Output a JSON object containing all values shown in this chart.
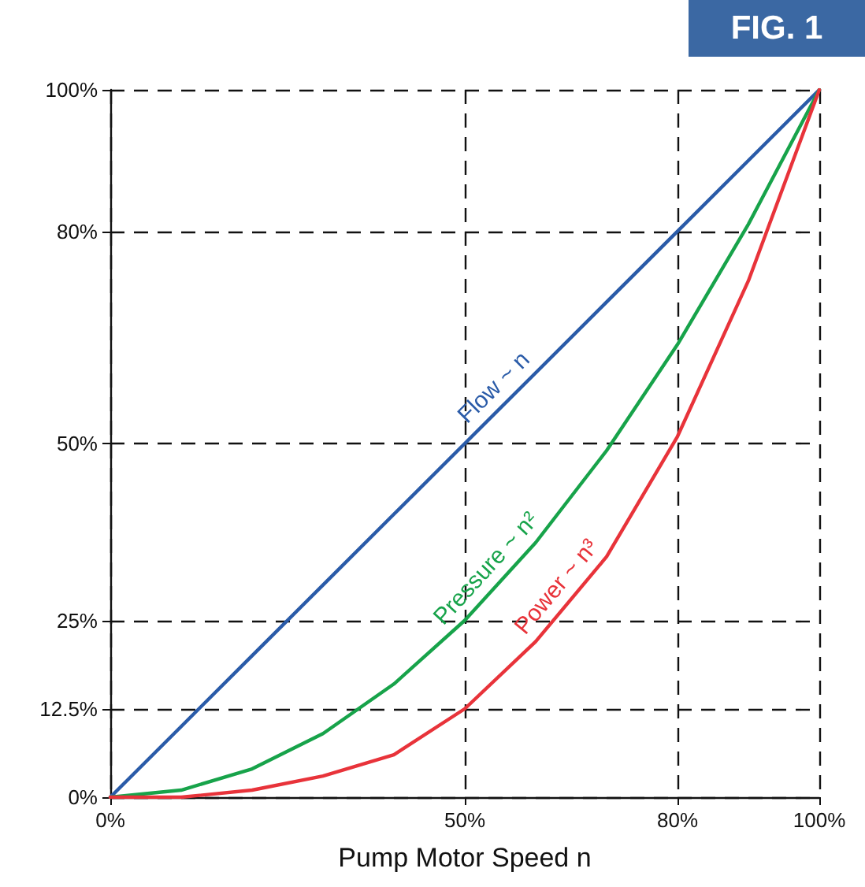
{
  "chart_data": {
    "type": "line",
    "xlabel": "Pump Motor Speed n",
    "annotations": [
      "FIG. 1"
    ],
    "x": [
      0,
      10,
      20,
      30,
      40,
      50,
      60,
      70,
      80,
      90,
      100
    ],
    "series": [
      {
        "name": "Flow ~ n",
        "color": "#2a5ba8",
        "values": [
          0,
          10,
          20,
          30,
          40,
          50,
          60,
          70,
          80,
          90,
          100
        ]
      },
      {
        "name": "Pressure ~ n²",
        "color": "#17a34a",
        "values": [
          0,
          1,
          4,
          9,
          16,
          25,
          36,
          49,
          64,
          81,
          100
        ]
      },
      {
        "name": "Power ~ n³",
        "color": "#e8333a",
        "values": [
          0,
          0,
          1,
          3,
          6,
          12.5,
          22,
          34,
          51,
          73,
          100
        ]
      }
    ],
    "xlim": [
      0,
      100
    ],
    "ylim": [
      0,
      100
    ],
    "xticks": [
      {
        "value": 0,
        "label": "0%"
      },
      {
        "value": 50,
        "label": "50%"
      },
      {
        "value": 80,
        "label": "80%"
      },
      {
        "value": 100,
        "label": "100%"
      }
    ],
    "yticks": [
      {
        "value": 0,
        "label": "0%"
      },
      {
        "value": 12.5,
        "label": "12.5%"
      },
      {
        "value": 25,
        "label": "25%"
      },
      {
        "value": 50,
        "label": "50%"
      },
      {
        "value": 80,
        "label": "80%"
      },
      {
        "value": 100,
        "label": "100%"
      }
    ],
    "grid": true,
    "legend": false,
    "marker": "none",
    "line_style": "solid"
  }
}
